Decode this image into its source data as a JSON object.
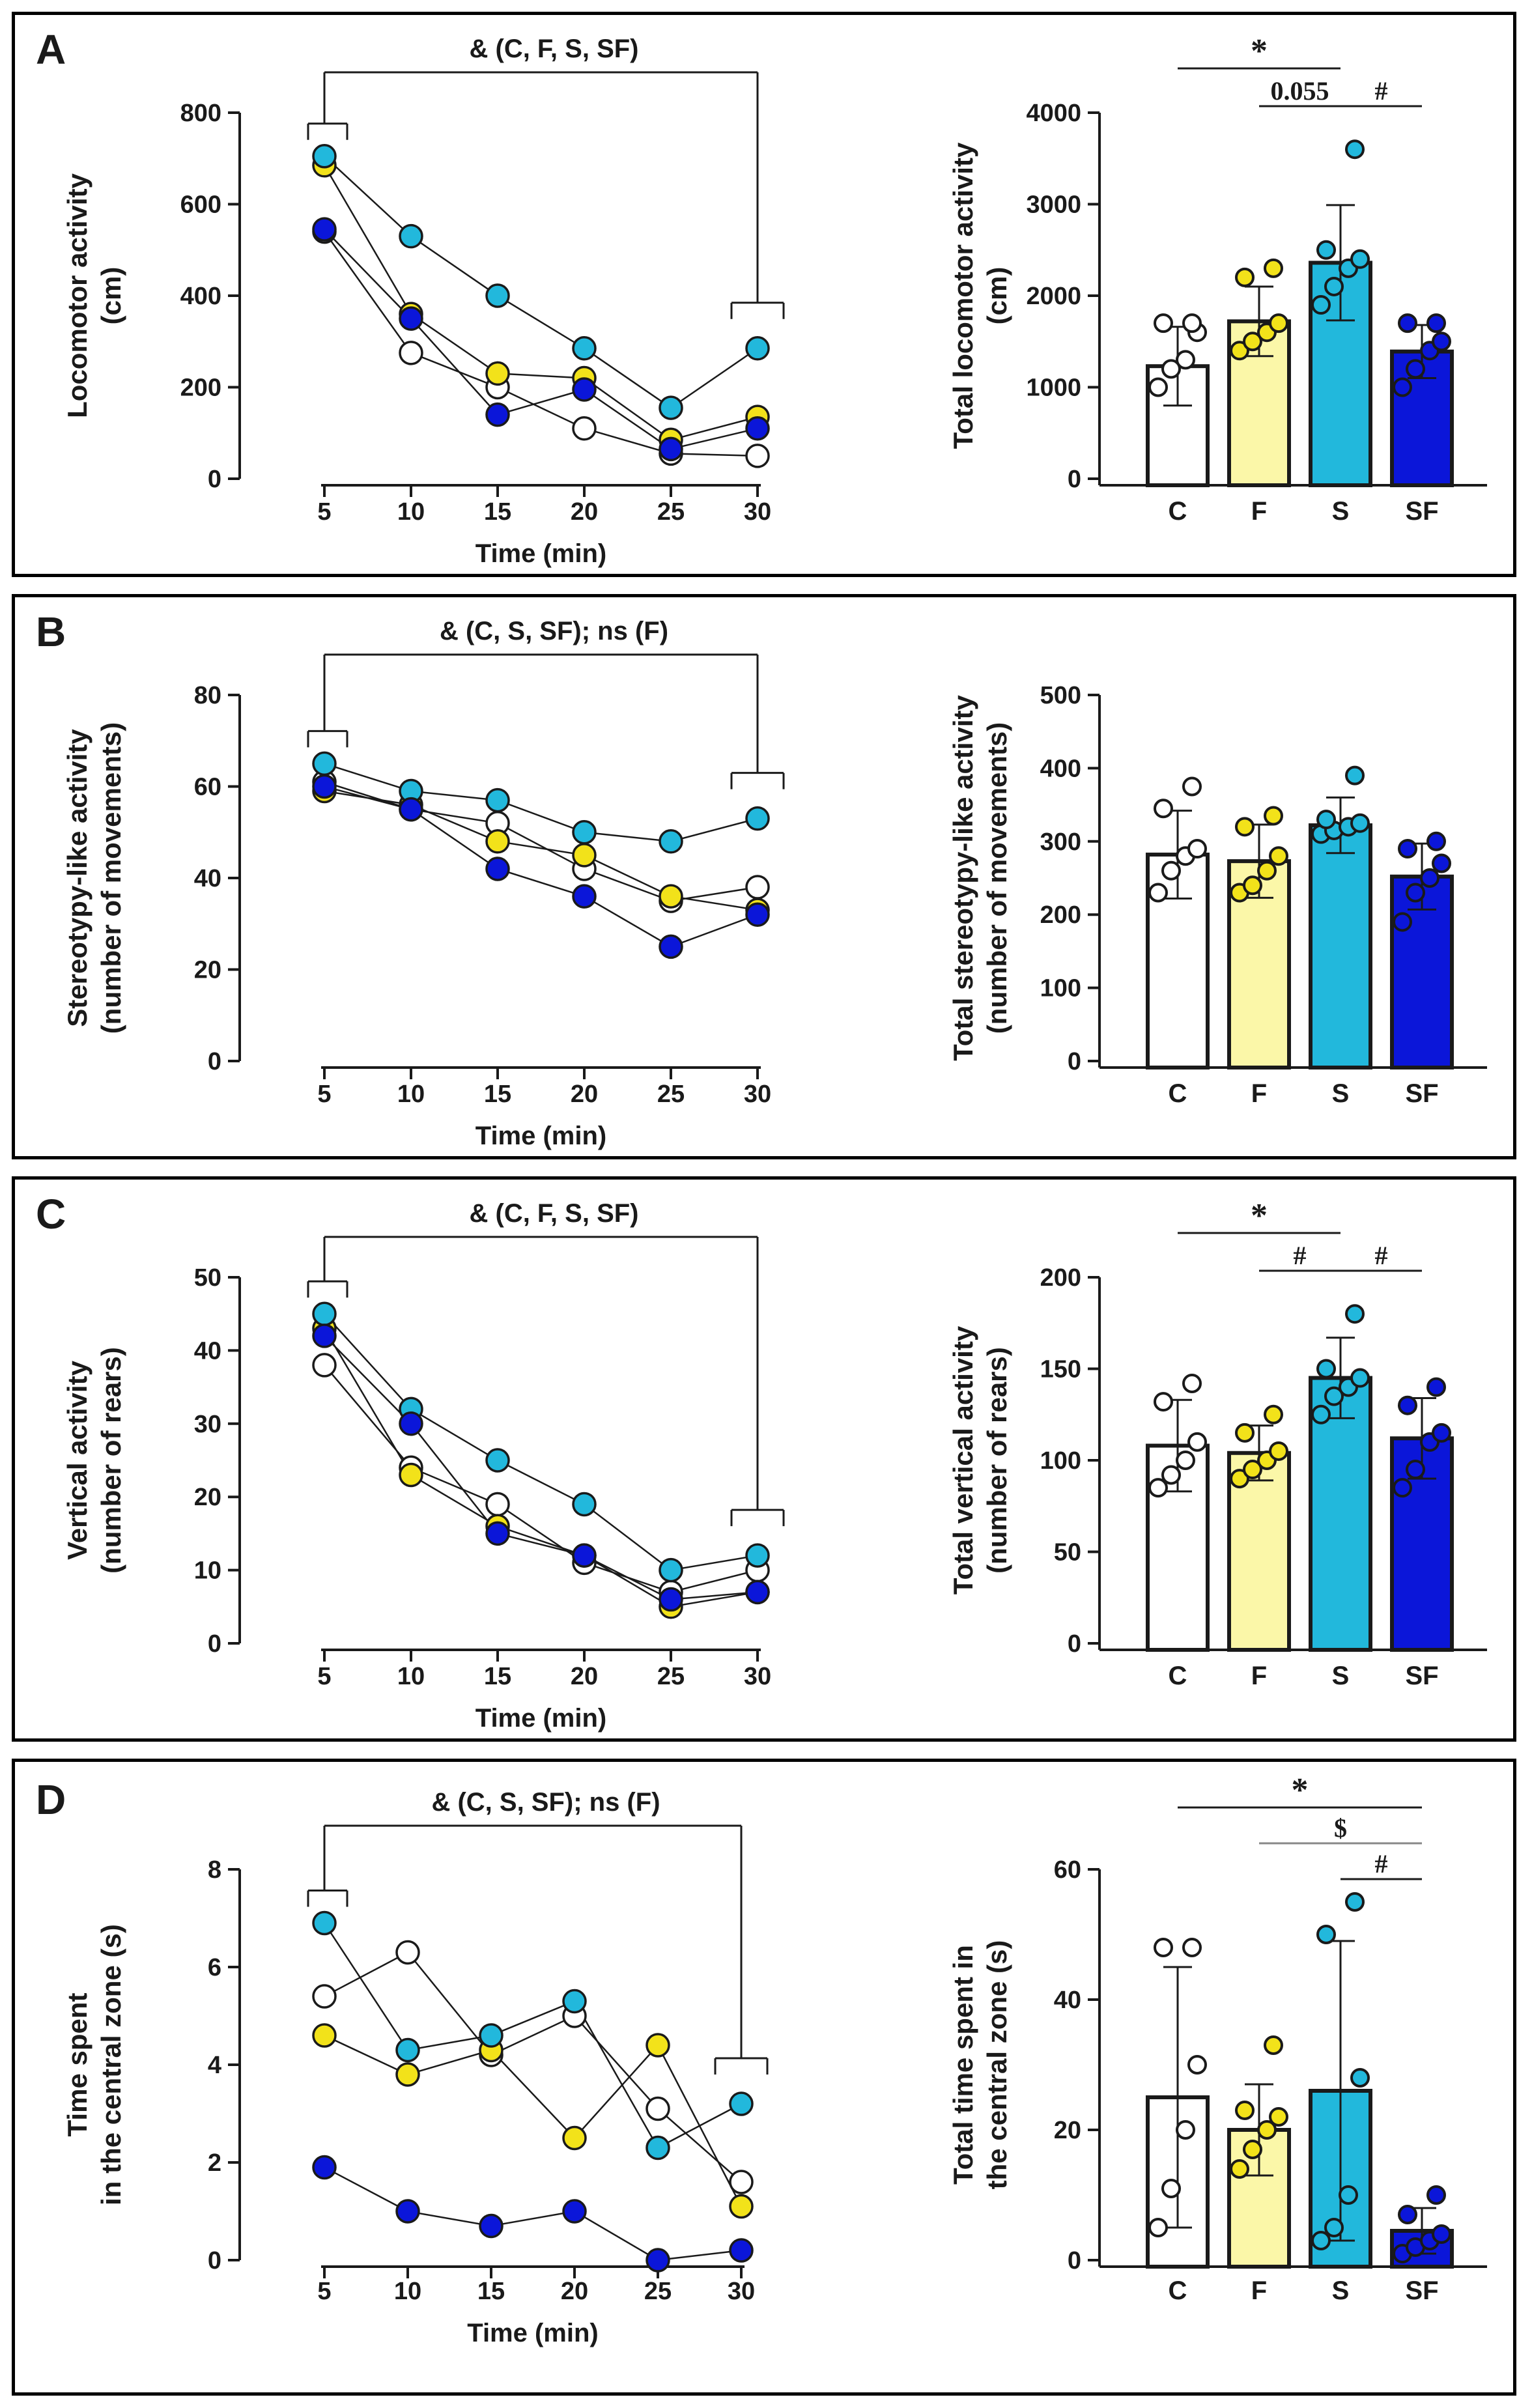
{
  "colors": {
    "C": "#ffffff",
    "F": "#f2e21a",
    "S": "#22b8dc",
    "SF": "#0b16d9",
    "bar_F": "#fbf7a8"
  },
  "groups": [
    "C",
    "F",
    "S",
    "SF"
  ],
  "panels": [
    {
      "letter": "A",
      "bracket_label": "& (C, F, S, SF)",
      "chart_data": [
        {
          "type": "line",
          "ylabel": [
            "Locomotor activity",
            "(cm)"
          ],
          "xlabel": "Time (min)",
          "x": [
            5,
            10,
            15,
            20,
            25,
            30
          ],
          "ylim": [
            0,
            800
          ],
          "yticks": [
            0,
            200,
            400,
            600,
            800
          ],
          "series": [
            {
              "name": "C",
              "values": [
                540,
                275,
                200,
                110,
                55,
                50
              ]
            },
            {
              "name": "F",
              "values": [
                685,
                360,
                230,
                220,
                85,
                135
              ]
            },
            {
              "name": "S",
              "values": [
                705,
                530,
                400,
                285,
                155,
                285
              ]
            },
            {
              "name": "SF",
              "values": [
                545,
                350,
                140,
                195,
                65,
                110
              ]
            }
          ]
        },
        {
          "type": "bar",
          "ylabel": [
            "Total locomotor activity",
            "(cm)"
          ],
          "categories": [
            "C",
            "F",
            "S",
            "SF"
          ],
          "ylim": [
            0,
            4000
          ],
          "yticks": [
            0,
            1000,
            2000,
            3000,
            4000
          ],
          "values": [
            1230,
            1720,
            2360,
            1390
          ],
          "errors": [
            430,
            380,
            630,
            290
          ],
          "points": [
            [
              1000,
              1200,
              1300,
              1600,
              1700,
              1700
            ],
            [
              1400,
              1500,
              1600,
              1700,
              2200,
              2300
            ],
            [
              1900,
              2100,
              2300,
              2400,
              2500,
              3600
            ],
            [
              1000,
              1200,
              1400,
              1500,
              1700,
              1700
            ]
          ],
          "significance": [
            {
              "from": 0,
              "to": 2,
              "label": "*"
            },
            {
              "from": 1,
              "to": 2,
              "label": "0.055"
            },
            {
              "from": 2,
              "to": 3,
              "label": "#"
            }
          ]
        }
      ]
    },
    {
      "letter": "B",
      "bracket_label": "& (C, S, SF); ns (F)",
      "chart_data": [
        {
          "type": "line",
          "ylabel": [
            "Stereotypy-like activity",
            "(number of movements)"
          ],
          "xlabel": "Time (min)",
          "x": [
            5,
            10,
            15,
            20,
            25,
            30
          ],
          "ylim": [
            0,
            80
          ],
          "yticks": [
            0,
            20,
            40,
            60,
            80
          ],
          "series": [
            {
              "name": "C",
              "values": [
                61,
                55,
                52,
                42,
                35,
                38
              ]
            },
            {
              "name": "F",
              "values": [
                59,
                56,
                48,
                45,
                36,
                33
              ]
            },
            {
              "name": "S",
              "values": [
                65,
                59,
                57,
                50,
                48,
                53
              ]
            },
            {
              "name": "SF",
              "values": [
                60,
                55,
                42,
                36,
                25,
                32
              ]
            }
          ]
        },
        {
          "type": "bar",
          "ylabel": [
            "Total stereotypy-like activity",
            "(number of movements)"
          ],
          "categories": [
            "C",
            "F",
            "S",
            "SF"
          ],
          "ylim": [
            0,
            500
          ],
          "yticks": [
            0,
            100,
            200,
            300,
            400,
            500
          ],
          "values": [
            282,
            273,
            322,
            252
          ],
          "errors": [
            60,
            50,
            38,
            45
          ],
          "points": [
            [
              230,
              260,
              280,
              290,
              345,
              375
            ],
            [
              230,
              240,
              260,
              280,
              320,
              335
            ],
            [
              310,
              315,
              320,
              325,
              330,
              390
            ],
            [
              190,
              230,
              250,
              270,
              290,
              300
            ]
          ],
          "significance": []
        }
      ]
    },
    {
      "letter": "C",
      "bracket_label": "& (C, F, S, SF)",
      "chart_data": [
        {
          "type": "line",
          "ylabel": [
            "Vertical activity",
            "(number of rears)"
          ],
          "xlabel": "Time (min)",
          "x": [
            5,
            10,
            15,
            20,
            25,
            30
          ],
          "ylim": [
            0,
            50
          ],
          "yticks": [
            0,
            10,
            20,
            30,
            40,
            50
          ],
          "series": [
            {
              "name": "C",
              "values": [
                38,
                24,
                19,
                11,
                7,
                10
              ]
            },
            {
              "name": "F",
              "values": [
                43,
                23,
                16,
                12,
                5,
                7
              ]
            },
            {
              "name": "S",
              "values": [
                45,
                32,
                25,
                19,
                10,
                12
              ]
            },
            {
              "name": "SF",
              "values": [
                42,
                30,
                15,
                12,
                6,
                7
              ]
            }
          ]
        },
        {
          "type": "bar",
          "ylabel": [
            "Total vertical activity",
            "(number of rears)"
          ],
          "categories": [
            "C",
            "F",
            "S",
            "SF"
          ],
          "ylim": [
            0,
            200
          ],
          "yticks": [
            0,
            50,
            100,
            150,
            200
          ],
          "values": [
            108,
            104,
            145,
            112
          ],
          "errors": [
            25,
            15,
            22,
            22
          ],
          "points": [
            [
              85,
              92,
              100,
              110,
              132,
              142
            ],
            [
              90,
              95,
              100,
              105,
              115,
              125
            ],
            [
              125,
              135,
              140,
              145,
              150,
              180
            ],
            [
              85,
              95,
              110,
              115,
              130,
              140
            ]
          ],
          "significance": [
            {
              "from": 0,
              "to": 2,
              "label": "*"
            },
            {
              "from": 1,
              "to": 2,
              "label": "#"
            },
            {
              "from": 2,
              "to": 3,
              "label": "#"
            }
          ]
        }
      ]
    },
    {
      "letter": "D",
      "bracket_label": "& (C, S, SF); ns (F)",
      "chart_data": [
        {
          "type": "line",
          "ylabel": [
            "Time spent",
            "in the central zone (s)"
          ],
          "xlabel": "Time (min)",
          "x": [
            5,
            10,
            15,
            20,
            25,
            30
          ],
          "ylim": [
            0,
            8
          ],
          "yticks": [
            0,
            2,
            4,
            6,
            8
          ],
          "series": [
            {
              "name": "C",
              "values": [
                5.4,
                6.3,
                4.2,
                5.0,
                3.1,
                1.6
              ]
            },
            {
              "name": "F",
              "values": [
                4.6,
                3.8,
                4.3,
                2.5,
                4.4,
                1.1
              ]
            },
            {
              "name": "S",
              "values": [
                6.9,
                4.3,
                4.6,
                5.3,
                2.3,
                3.2
              ]
            },
            {
              "name": "SF",
              "values": [
                1.9,
                1.0,
                0.7,
                1.0,
                0.0,
                0.2
              ]
            }
          ]
        },
        {
          "type": "bar",
          "ylabel": [
            "Total time spent in",
            "the central zone (s)"
          ],
          "categories": [
            "C",
            "F",
            "S",
            "SF"
          ],
          "ylim": [
            0,
            60
          ],
          "yticks": [
            0,
            20,
            40,
            60
          ],
          "values": [
            25,
            20,
            26,
            4.5
          ],
          "errors": [
            20,
            7,
            23,
            3.5
          ],
          "points": [
            [
              5,
              11,
              20,
              30,
              48,
              48
            ],
            [
              14,
              17,
              20,
              22,
              23,
              33
            ],
            [
              3,
              5,
              10,
              28,
              50,
              55
            ],
            [
              1,
              2,
              3,
              4,
              7,
              10
            ]
          ],
          "significance": [
            {
              "from": 0,
              "to": 3,
              "label": "*"
            },
            {
              "from": 1,
              "to": 3,
              "label": "$"
            },
            {
              "from": 2,
              "to": 3,
              "label": "#"
            }
          ]
        }
      ]
    }
  ]
}
